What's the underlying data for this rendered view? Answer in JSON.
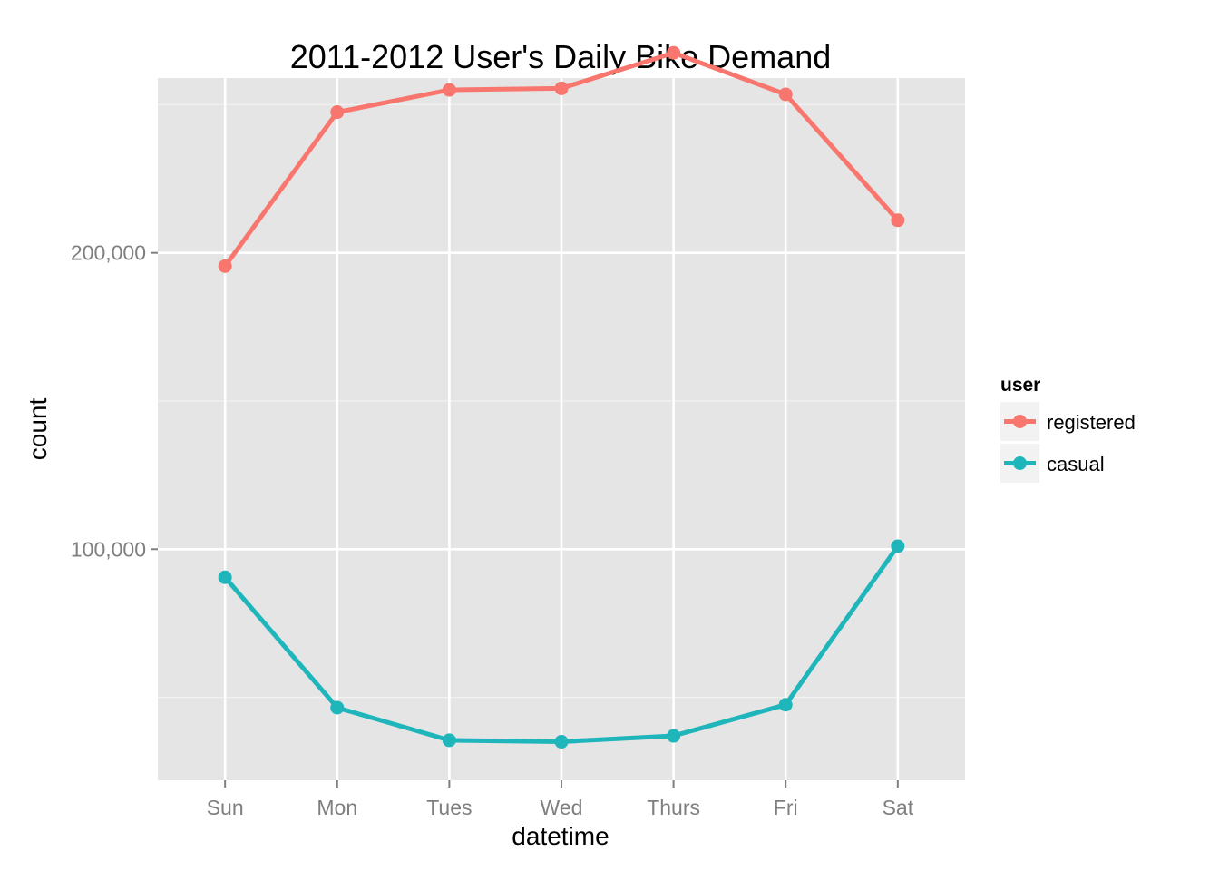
{
  "chart_data": {
    "type": "line",
    "title": "2011-2012 User's Daily Bike Demand",
    "xlabel": "datetime",
    "ylabel": "count",
    "categories": [
      "Sun",
      "Mon",
      "Tues",
      "Wed",
      "Thurs",
      "Fri",
      "Sat"
    ],
    "ylim": [
      22000,
      259000
    ],
    "yticks": [
      {
        "value": 100000,
        "label": "100,000"
      },
      {
        "value": 200000,
        "label": "200,000"
      }
    ],
    "y_minor_gridlines": [
      50000,
      150000,
      250000
    ],
    "grid": true,
    "legend": {
      "title": "user",
      "position": "right"
    },
    "series": [
      {
        "name": "registered",
        "color": "#f8766d",
        "values": [
          195500,
          247500,
          255000,
          255500,
          267500,
          253500,
          211000
        ]
      },
      {
        "name": "casual",
        "color": "#1fb6bb",
        "values": [
          90500,
          46500,
          35500,
          35000,
          37000,
          47500,
          101000
        ]
      }
    ]
  }
}
